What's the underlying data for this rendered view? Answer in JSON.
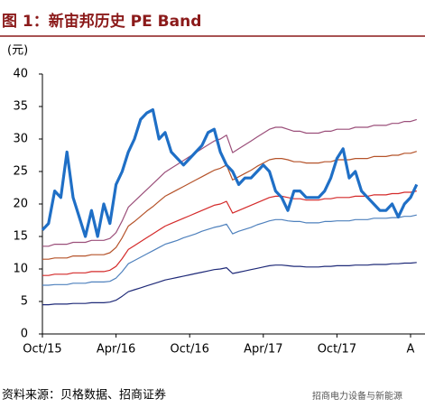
{
  "chart_data": {
    "type": "line",
    "title": "图 1：新宙邦历史 PE Band",
    "y_label": "(元)",
    "source": "资料来源：贝格数据、招商证券",
    "watermark": "招商电力设备与新能源",
    "categories": [
      "Oct/15",
      null,
      null,
      null,
      null,
      null,
      null,
      null,
      null,
      null,
      null,
      null,
      "Apr/16",
      null,
      null,
      null,
      null,
      null,
      null,
      null,
      null,
      null,
      null,
      null,
      "Oct/16",
      null,
      null,
      null,
      null,
      null,
      null,
      null,
      null,
      null,
      null,
      null,
      "Apr/17",
      null,
      null,
      null,
      null,
      null,
      null,
      null,
      null,
      null,
      null,
      null,
      "Oct/17",
      null,
      null,
      null,
      null,
      null,
      null,
      null,
      null,
      null,
      null,
      null,
      "A",
      null
    ],
    "series": [
      {
        "color": "#9b4f7a",
        "width": 1.2,
        "values": [
          13.5,
          13.5,
          13.8,
          13.8,
          13.8,
          14.1,
          14.1,
          14.1,
          14.4,
          14.4,
          14.4,
          14.7,
          15.6,
          17.4,
          19.5,
          20.4,
          21.3,
          22.2,
          23.1,
          24.0,
          24.9,
          25.5,
          26.1,
          26.7,
          27.3,
          27.9,
          28.5,
          29.1,
          29.7,
          30.0,
          30.6,
          27.9,
          28.5,
          29.1,
          29.7,
          30.3,
          30.9,
          31.5,
          31.8,
          31.8,
          31.5,
          31.2,
          31.2,
          30.9,
          30.9,
          30.9,
          31.2,
          31.2,
          31.5,
          31.5,
          31.5,
          31.8,
          31.8,
          31.8,
          32.1,
          32.1,
          32.1,
          32.4,
          32.4,
          32.7,
          32.7,
          33.0
        ]
      },
      {
        "color": "#b5532a",
        "width": 1.2,
        "values": [
          11.5,
          11.5,
          11.7,
          11.7,
          11.7,
          12.0,
          12.0,
          12.0,
          12.2,
          12.2,
          12.2,
          12.5,
          13.3,
          14.8,
          16.6,
          17.3,
          18.1,
          18.9,
          19.6,
          20.4,
          21.2,
          21.7,
          22.2,
          22.7,
          23.2,
          23.7,
          24.2,
          24.7,
          25.2,
          25.5,
          26.0,
          23.7,
          24.2,
          24.7,
          25.2,
          25.8,
          26.3,
          26.8,
          27.0,
          27.0,
          26.8,
          26.5,
          26.5,
          26.3,
          26.3,
          26.3,
          26.5,
          26.5,
          26.8,
          26.8,
          26.8,
          27.0,
          27.0,
          27.0,
          27.3,
          27.3,
          27.3,
          27.5,
          27.5,
          27.8,
          27.8,
          28.1
        ]
      },
      {
        "color": "#d42a2a",
        "width": 1.2,
        "values": [
          9.0,
          9.0,
          9.2,
          9.2,
          9.2,
          9.4,
          9.4,
          9.4,
          9.6,
          9.6,
          9.6,
          9.8,
          10.4,
          11.6,
          13.0,
          13.6,
          14.2,
          14.8,
          15.4,
          16.0,
          16.6,
          17.0,
          17.4,
          17.8,
          18.2,
          18.6,
          19.0,
          19.4,
          19.8,
          20.0,
          20.4,
          18.6,
          19.0,
          19.4,
          19.8,
          20.2,
          20.6,
          21.0,
          21.2,
          21.2,
          21.0,
          20.8,
          20.8,
          20.6,
          20.6,
          20.6,
          20.8,
          20.8,
          21.0,
          21.0,
          21.0,
          21.2,
          21.2,
          21.2,
          21.4,
          21.4,
          21.4,
          21.6,
          21.6,
          21.8,
          21.8,
          22.0
        ]
      },
      {
        "color": "#4f81bd",
        "width": 1.2,
        "values": [
          7.5,
          7.5,
          7.6,
          7.6,
          7.6,
          7.8,
          7.8,
          7.8,
          8.0,
          8.0,
          8.0,
          8.1,
          8.6,
          9.6,
          10.8,
          11.3,
          11.8,
          12.3,
          12.8,
          13.3,
          13.8,
          14.1,
          14.4,
          14.8,
          15.1,
          15.4,
          15.8,
          16.1,
          16.4,
          16.6,
          16.9,
          15.4,
          15.8,
          16.1,
          16.4,
          16.8,
          17.1,
          17.4,
          17.6,
          17.6,
          17.4,
          17.3,
          17.3,
          17.1,
          17.1,
          17.1,
          17.3,
          17.3,
          17.4,
          17.4,
          17.4,
          17.6,
          17.6,
          17.6,
          17.8,
          17.8,
          17.8,
          17.9,
          17.9,
          18.1,
          18.1,
          18.3
        ]
      },
      {
        "color": "#1f2a78",
        "width": 1.2,
        "values": [
          4.5,
          4.5,
          4.6,
          4.6,
          4.6,
          4.7,
          4.7,
          4.7,
          4.8,
          4.8,
          4.8,
          4.9,
          5.2,
          5.8,
          6.5,
          6.8,
          7.1,
          7.4,
          7.7,
          8.0,
          8.3,
          8.5,
          8.7,
          8.9,
          9.1,
          9.3,
          9.5,
          9.7,
          9.9,
          10.0,
          10.2,
          9.3,
          9.5,
          9.7,
          9.9,
          10.1,
          10.3,
          10.5,
          10.6,
          10.6,
          10.5,
          10.4,
          10.4,
          10.3,
          10.3,
          10.3,
          10.4,
          10.4,
          10.5,
          10.5,
          10.5,
          10.6,
          10.6,
          10.6,
          10.7,
          10.7,
          10.7,
          10.8,
          10.8,
          10.9,
          10.9,
          11.0
        ]
      },
      {
        "color": "#1f6fc6",
        "width": 3.2,
        "values": [
          16,
          17,
          22,
          21,
          28,
          21,
          18,
          15,
          19,
          15,
          20,
          17,
          23,
          25,
          28,
          30,
          33,
          34,
          34.5,
          30,
          31,
          28,
          27,
          26,
          27,
          28,
          29,
          31,
          31.5,
          28,
          26,
          25,
          23,
          24,
          24,
          25,
          26,
          25,
          22,
          21,
          19,
          22,
          22,
          21,
          21,
          21,
          22,
          24,
          27,
          28.5,
          24,
          25,
          22,
          21,
          20,
          19,
          19,
          20,
          18,
          20,
          21,
          23
        ]
      }
    ],
    "ylim": [
      0,
      40
    ],
    "yticks": [
      0,
      5,
      10,
      15,
      20,
      25,
      30,
      35,
      40
    ]
  }
}
